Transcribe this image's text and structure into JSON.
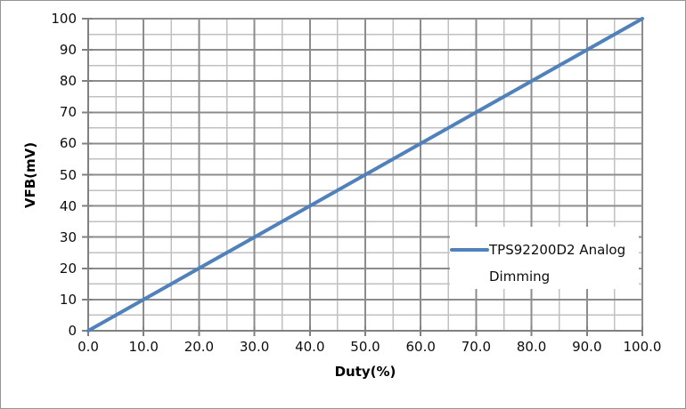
{
  "chart_data": {
    "type": "line",
    "title": "",
    "xlabel": "Duty(%)",
    "ylabel": "VFB(mV)",
    "xlim": [
      0,
      100
    ],
    "ylim": [
      0,
      100
    ],
    "x_major_step": 10,
    "y_major_step": 10,
    "x_minor_step": 5,
    "y_minor_step": 5,
    "x_tick_labels": [
      "0.0",
      "10.0",
      "20.0",
      "30.0",
      "40.0",
      "50.0",
      "60.0",
      "70.0",
      "80.0",
      "90.0",
      "100.0"
    ],
    "y_tick_labels": [
      "0",
      "10",
      "20",
      "30",
      "40",
      "50",
      "60",
      "70",
      "80",
      "90",
      "100"
    ],
    "grid": {
      "major": true,
      "minor": true,
      "major_color": "#8c8c8c",
      "minor_color": "#c0c0c0"
    },
    "legend": {
      "position": "inside-right",
      "entries": [
        {
          "label": "TPS92200D2 Analog Dimming",
          "color": "#4f81bd"
        }
      ]
    },
    "series": [
      {
        "name": "TPS92200D2 Analog Dimming",
        "color": "#4f81bd",
        "x": [
          0,
          10,
          20,
          30,
          40,
          50,
          60,
          70,
          80,
          90,
          100
        ],
        "y": [
          0,
          10,
          20,
          30,
          40,
          50,
          60,
          70,
          80,
          90,
          100
        ]
      }
    ]
  },
  "colors": {
    "axis": "#808080",
    "frame_border": "#949494",
    "background": "#ffffff",
    "text": "#0d0d0d"
  }
}
